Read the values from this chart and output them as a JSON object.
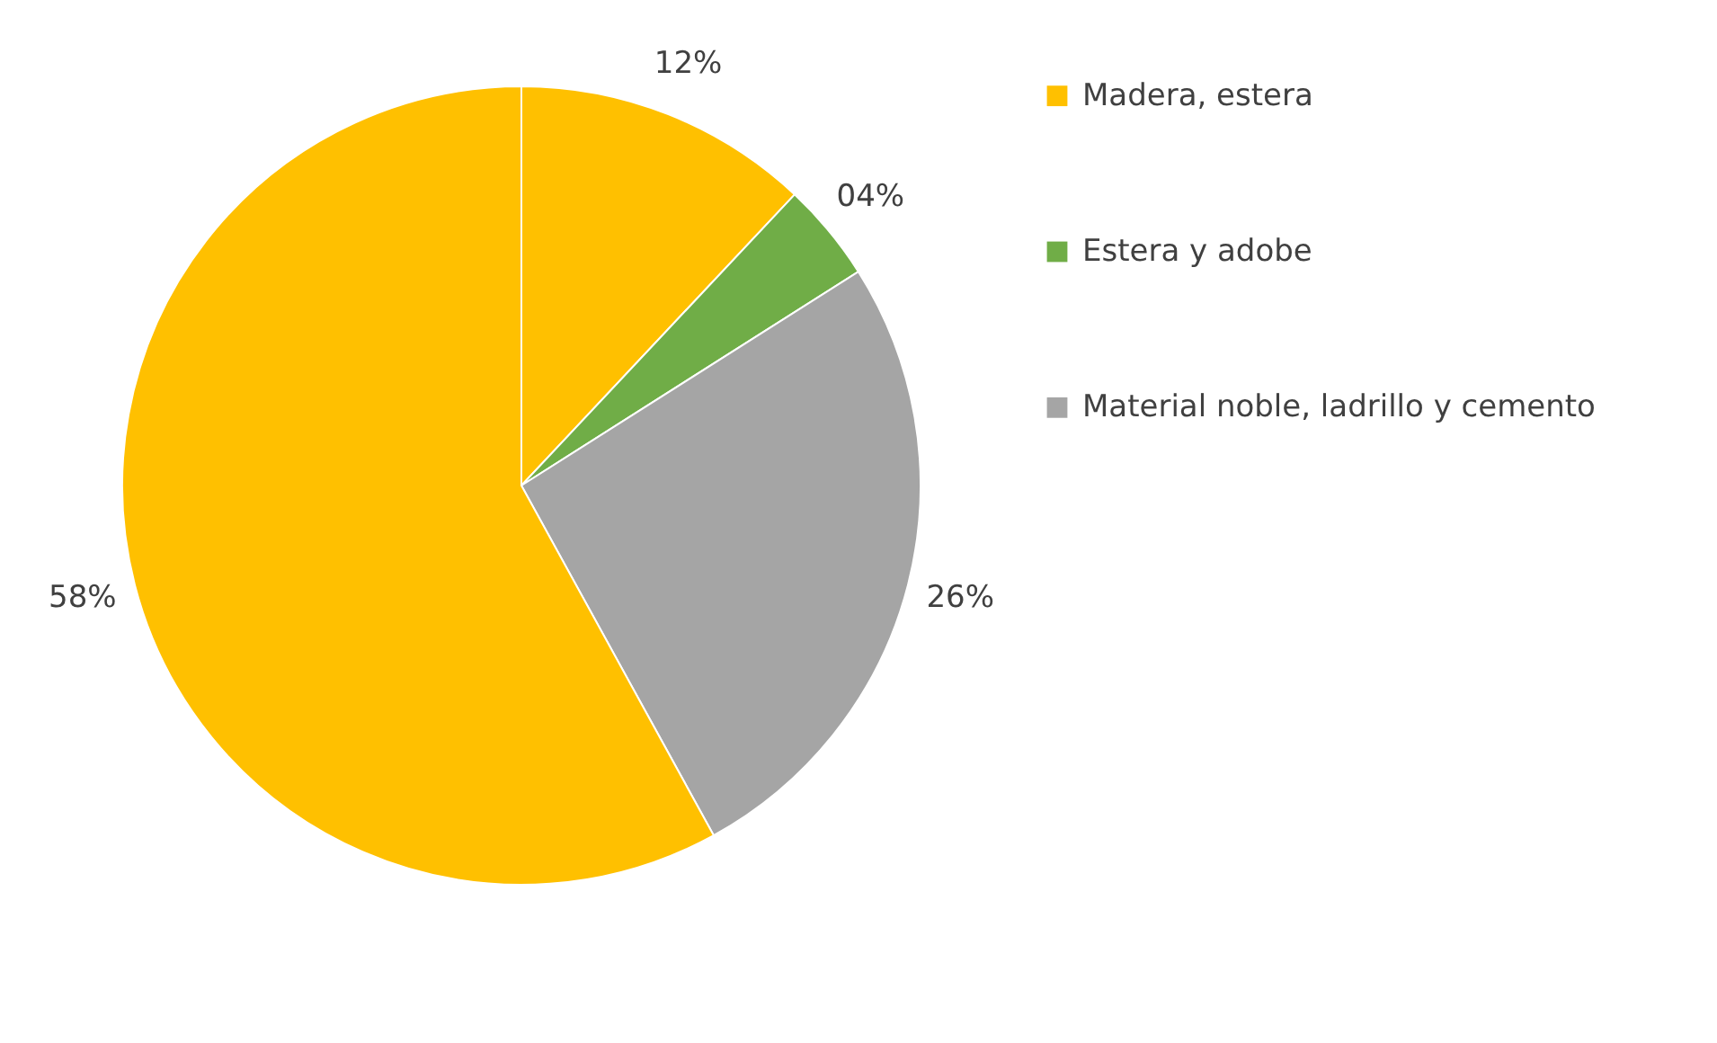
{
  "chart_data": {
    "type": "pie",
    "categories": [
      "Madera, estera",
      "Estera y adobe",
      "Material noble, ladrillo y cemento",
      null
    ],
    "values": [
      12,
      4,
      26,
      58
    ],
    "colors": [
      "#ffc000",
      "#70ad47",
      "#a5a5a5",
      "#ffc000"
    ],
    "value_labels": [
      "12%",
      "04%",
      "26%",
      "58%"
    ],
    "legend": "right"
  }
}
